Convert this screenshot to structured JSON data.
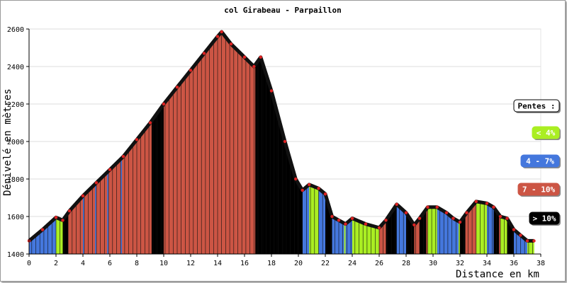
{
  "chart_data": {
    "type": "area",
    "title": "col Girabeau - Parpaillon",
    "xlabel": "Distance en km",
    "ylabel": "Dénivelé en mètres",
    "xlim": [
      0,
      38
    ],
    "ylim": [
      1400,
      2600
    ],
    "x_ticks": [
      "0",
      "2",
      "4",
      "6",
      "8",
      "10",
      "12",
      "14",
      "16",
      "18",
      "20",
      "22",
      "24",
      "26",
      "28",
      "30",
      "32",
      "34",
      "36",
      "38"
    ],
    "y_ticks": [
      "1400",
      "1600",
      "1800",
      "2000",
      "2200",
      "2400",
      "2600"
    ],
    "grid": true,
    "legend_position": "right",
    "profile": {
      "x": [
        0,
        1,
        2,
        2.5,
        3,
        4,
        5,
        6,
        7,
        8,
        9,
        10,
        11,
        12,
        13,
        14,
        14.3,
        15,
        16,
        16.7,
        17.2,
        18,
        19,
        19.8,
        20.3,
        20.8,
        21.5,
        22,
        22.5,
        23,
        23.5,
        24,
        25,
        26,
        26.5,
        27.3,
        28,
        28.6,
        29,
        29.6,
        30.3,
        31,
        31.5,
        32,
        32.5,
        33.2,
        34,
        34.5,
        35,
        35.5,
        36,
        36.5,
        37,
        37.5
      ],
      "y": [
        1470,
        1530,
        1595,
        1580,
        1630,
        1710,
        1780,
        1850,
        1920,
        2010,
        2100,
        2200,
        2290,
        2380,
        2470,
        2560,
        2585,
        2520,
        2450,
        2400,
        2450,
        2270,
        2000,
        1800,
        1740,
        1770,
        1750,
        1720,
        1600,
        1580,
        1560,
        1590,
        1560,
        1540,
        1580,
        1665,
        1620,
        1555,
        1590,
        1650,
        1650,
        1620,
        1590,
        1570,
        1620,
        1680,
        1670,
        1650,
        1600,
        1590,
        1530,
        1500,
        1470,
        1470
      ]
    },
    "legend": [
      {
        "label": "Pentes :",
        "color": "#ffffff",
        "text_color": "#000000"
      },
      {
        "label": "< 4%",
        "color": "#aaee22",
        "text_color": "#ffffff"
      },
      {
        "label": "4 - 7%",
        "color": "#4477dd",
        "text_color": "#ffffff"
      },
      {
        "label": "7 - 10%",
        "color": "#cc5544",
        "text_color": "#ffffff"
      },
      {
        "label": "> 10%",
        "color": "#000000",
        "text_color": "#ffffff"
      }
    ]
  }
}
